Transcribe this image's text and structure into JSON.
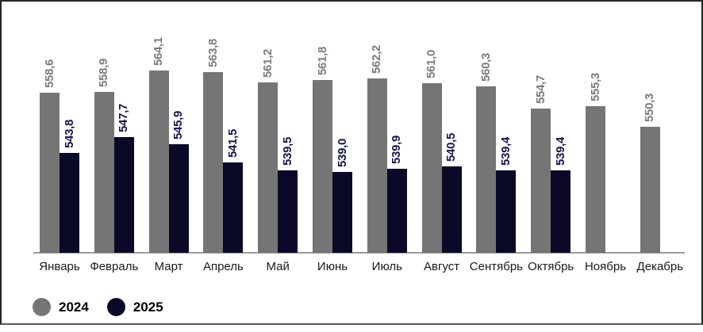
{
  "chart_data": {
    "type": "bar",
    "title": "",
    "xlabel": "",
    "ylabel": "",
    "grid": false,
    "value_axis": {
      "visible": false,
      "baseline_value": 519,
      "decimal_separator": ","
    },
    "legend_position": "bottom-left",
    "categories": [
      "Январь",
      "Февраль",
      "Март",
      "Апрель",
      "Май",
      "Июнь",
      "Июль",
      "Август",
      "Сентябрь",
      "Октябрь",
      "Ноябрь",
      "Декабрь"
    ],
    "series": [
      {
        "name": "2024",
        "color": "#757575",
        "label_color": "#7c7c7c",
        "values": [
          558.6,
          558.9,
          564.1,
          563.8,
          561.2,
          561.8,
          562.2,
          561.0,
          560.3,
          554.7,
          555.3,
          550.3
        ],
        "labels": [
          "558,6",
          "558,9",
          "564,1",
          "563,8",
          "561,2",
          "561,8",
          "562,2",
          "561,0",
          "560,3",
          "554,7",
          "555,3",
          "550,3"
        ]
      },
      {
        "name": "2025",
        "color": "#0a0a28",
        "label_color": "#15154a",
        "values": [
          543.8,
          547.7,
          545.9,
          541.5,
          539.5,
          539.0,
          539.9,
          540.5,
          539.4,
          539.4,
          null,
          null
        ],
        "labels": [
          "543,8",
          "547,7",
          "545,9",
          "541,5",
          "539,5",
          "539,0",
          "539,9",
          "540,5",
          "539,4",
          "539,4",
          null,
          null
        ]
      }
    ]
  }
}
